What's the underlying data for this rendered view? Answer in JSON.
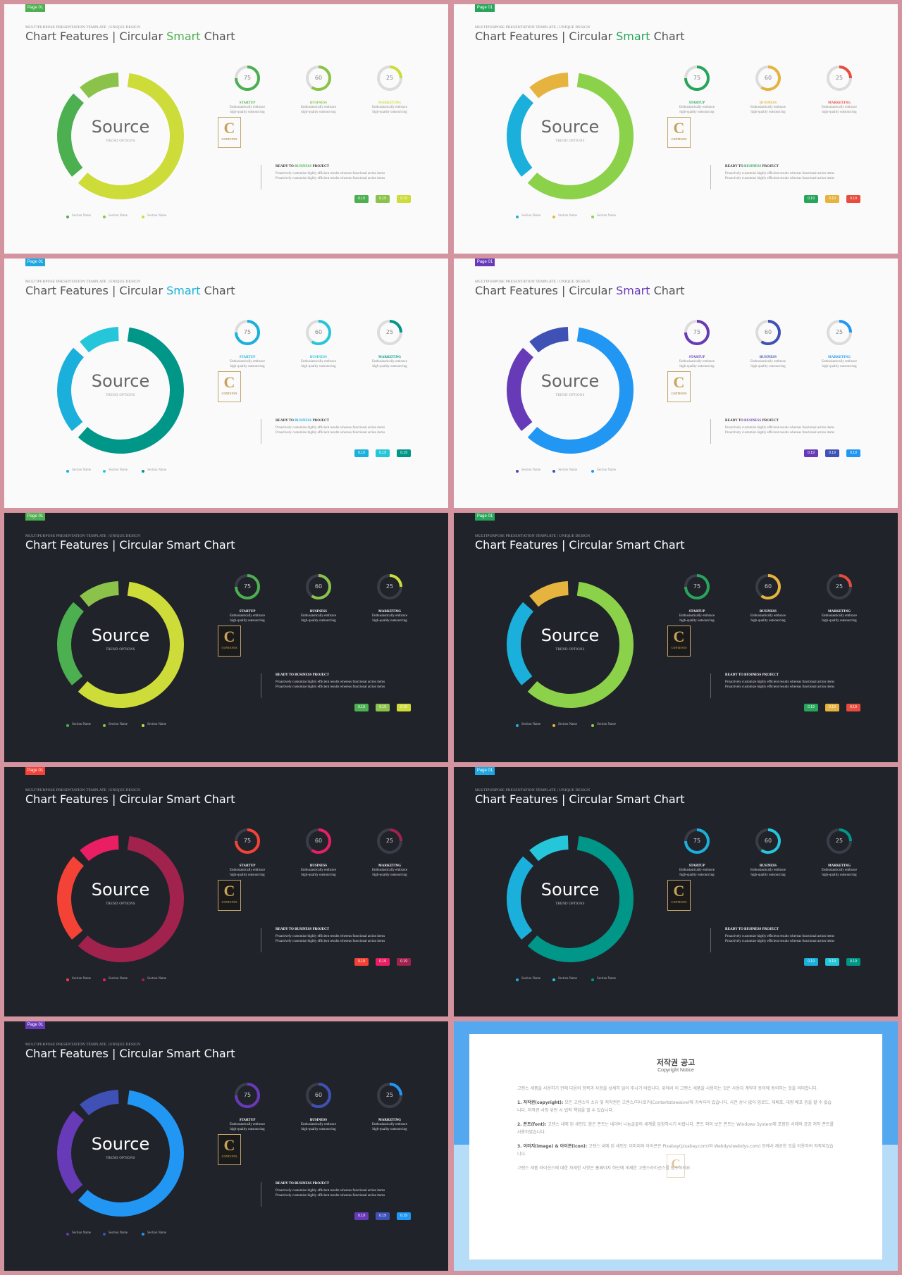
{
  "slide_common": {
    "page_label": "Page 01",
    "subheading": "MULTIPURPOSE PRESENTATION TEMPLATE | UNIQUE DESIGN",
    "title_prefix": "Chart Features | Circular ",
    "title_highlight": "Smart",
    "title_suffix": " Chart",
    "center_text": "Source",
    "center_sub": "TREND OPTIONS",
    "logo_letter": "C",
    "logo_text": "CONTENTS",
    "ready_prefix": "READY TO ",
    "ready_highlight": "BUSINESS",
    "ready_suffix": " PROJECT",
    "ready_desc_1": "Proactively customize highly efficient results whereas functional action items",
    "ready_desc_2": "Proactively customize highly efficient results whereas functional action items",
    "tag_label": "0.19",
    "legend_label": "Section Name",
    "categories": [
      {
        "title": "STARTUP",
        "value": "75",
        "desc_1": "Enthusiastically embrace",
        "desc_2": "high-quality outsourcing"
      },
      {
        "title": "BUSINESS",
        "value": "60",
        "desc_1": "Enthusiastically embrace",
        "desc_2": "high-quality outsourcing"
      },
      {
        "title": "MARKETING",
        "value": "25",
        "desc_1": "Enthusiastically embrace",
        "desc_2": "high-quality outsourcing"
      }
    ]
  },
  "slides": [
    {
      "theme": "light",
      "accent": "#4caf50",
      "colors": [
        "#4caf50",
        "#8bc34a",
        "#cddc39"
      ],
      "highlight_color": "#4caf50"
    },
    {
      "theme": "light",
      "accent": "#27a55b",
      "colors": [
        "#27a55b",
        "#e6b43e",
        "#e74c3c"
      ],
      "donut_colors": [
        "#1ab0db",
        "#e6b43e",
        "#8bd14a"
      ],
      "highlight_color": "#27a55b"
    },
    {
      "theme": "light",
      "accent": "#1ea7e1",
      "colors": [
        "#1ab0db",
        "#26c6da",
        "#009688"
      ],
      "donut_colors": [
        "#1ab0db",
        "#26c6da",
        "#009688"
      ],
      "highlight_color": "#1ab0db"
    },
    {
      "theme": "light",
      "accent": "#673ab7",
      "colors": [
        "#673ab7",
        "#3f51b5",
        "#2196f3"
      ],
      "donut_colors": [
        "#673ab7",
        "#3f51b5",
        "#2196f3"
      ],
      "highlight_color": "#673ab7"
    },
    {
      "theme": "dark",
      "accent": "#4caf50",
      "colors": [
        "#4caf50",
        "#8bc34a",
        "#cddc39"
      ],
      "highlight_color": "#ffffff"
    },
    {
      "theme": "dark",
      "accent": "#27a55b",
      "colors": [
        "#27a55b",
        "#e6b43e",
        "#e74c3c"
      ],
      "donut_colors": [
        "#1ab0db",
        "#e6b43e",
        "#8bd14a"
      ],
      "highlight_color": "#ffffff"
    },
    {
      "theme": "dark",
      "accent": "#f44336",
      "colors": [
        "#f44336",
        "#e91e63",
        "#a0224d"
      ],
      "donut_colors": [
        "#f44336",
        "#e91e63",
        "#a0224d"
      ],
      "highlight_color": "#ffffff"
    },
    {
      "theme": "dark",
      "accent": "#1ea7e1",
      "colors": [
        "#1ab0db",
        "#26c6da",
        "#009688"
      ],
      "donut_colors": [
        "#1ab0db",
        "#26c6da",
        "#009688"
      ],
      "highlight_color": "#ffffff"
    },
    {
      "theme": "dark",
      "accent": "#673ab7",
      "colors": [
        "#673ab7",
        "#3f51b5",
        "#2196f3"
      ],
      "donut_colors": [
        "#673ab7",
        "#3f51b5",
        "#2196f3"
      ],
      "highlight_color": "#ffffff"
    }
  ],
  "copyright": {
    "title": "저작권 공고",
    "subtitle": "Copyright Notice",
    "intro": "고렌스 세품을 사용하기 전에 다음의 항목과 사항을 상세히 읽어 주시기 바랍니다. 위에서 이 고렌스 세품을 사용하는 것은 사용자 계약과 동의에 동의하는 것을 의미합니다.",
    "p1_head": "1. 저작권(copyright):",
    "p1_body": "모든 고렌스의 소유 및 저작권은 고렌스/하나로커(Contentstowaive)에 귀속되어 있습니다. 사전 승낙 없이 업로드, 재배포, 대량 배포 등을 할 수 없습니다. 저작권 사항 위반 시 법적 책임을 질 수 있습니다.",
    "p2_head": "2. 폰트(font):",
    "p2_body": "고렌스 내에 된 세인도 함은 폰트는 네이버 나눔글꼴의 세계를 입장하시기 바랍니다. 폰트 외의 보든 폰트는 Windows System에 포함된 서체와 공공 저작 폰트를 사용하였습니다.",
    "p3_head": "3. 이미지(image) & 아이콘(icon):",
    "p3_body": "고렌스 내에 된 세인도 이미지와 아이콘은 Pixabay(pixabay.com)와 Webdys(webdys.com) 등에서 제공한 것을 이용하여 저작되었습니다.",
    "outro": "고렌스 세품 라이선스에 대한 자세한 사항은 홈페이지 하단에 게재한 고렌스라이선스를 참조하세요."
  }
}
